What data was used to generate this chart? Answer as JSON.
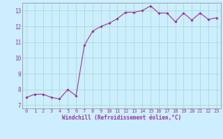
{
  "x": [
    0,
    1,
    2,
    3,
    4,
    5,
    6,
    7,
    8,
    9,
    10,
    11,
    12,
    13,
    14,
    15,
    16,
    17,
    18,
    19,
    20,
    21,
    22,
    23
  ],
  "y": [
    7.5,
    7.7,
    7.7,
    7.5,
    7.4,
    8.0,
    7.6,
    10.8,
    11.7,
    12.0,
    12.2,
    12.5,
    12.9,
    12.9,
    13.0,
    13.3,
    12.85,
    12.85,
    12.3,
    12.85,
    12.4,
    12.85,
    12.45,
    12.55
  ],
  "line_color": "#993399",
  "marker_color": "#993399",
  "bg_color": "#cceeff",
  "grid_color": "#aaddcc",
  "xlabel": "Windchill (Refroidissement éolien,°C)",
  "xlabel_color": "#993399",
  "tick_color": "#993399",
  "xlim": [
    -0.5,
    23.5
  ],
  "ylim": [
    6.8,
    13.5
  ],
  "yticks": [
    7,
    8,
    9,
    10,
    11,
    12,
    13
  ],
  "xticks": [
    0,
    1,
    2,
    3,
    4,
    5,
    6,
    7,
    8,
    9,
    10,
    11,
    12,
    13,
    14,
    15,
    16,
    17,
    18,
    19,
    20,
    21,
    22,
    23
  ],
  "figsize": [
    3.2,
    2.0
  ],
  "dpi": 100
}
